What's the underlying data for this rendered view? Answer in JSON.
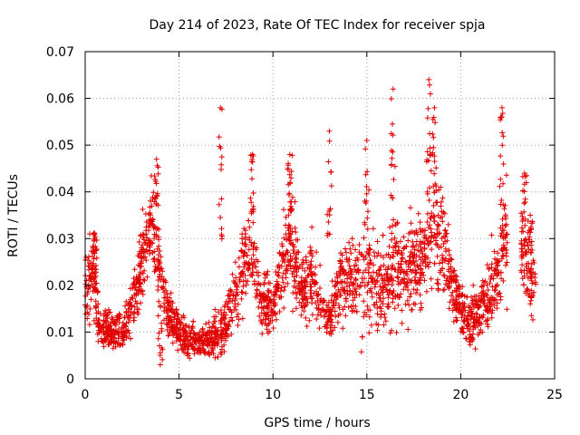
{
  "chart_data": {
    "type": "scatter",
    "title": "Day 214 of 2023, Rate Of TEC Index for receiver spja",
    "xlabel": "GPS time / hours",
    "ylabel": "ROTI / TECUs",
    "xlim": [
      0,
      25
    ],
    "ylim": [
      0,
      0.07
    ],
    "xticks": [
      "0",
      "5",
      "10",
      "15",
      "20",
      "25"
    ],
    "yticks": [
      "0",
      "0.01",
      "0.02",
      "0.03",
      "0.04",
      "0.05",
      "0.06",
      "0.07"
    ],
    "grid": true,
    "marker": "+",
    "color": "#e00000",
    "series": [
      {
        "name": "ROTI",
        "profile": [
          [
            0.0,
            0.018,
            0.006
          ],
          [
            0.3,
            0.022,
            0.006
          ],
          [
            0.5,
            0.024,
            0.006
          ],
          [
            0.6,
            0.015,
            0.004
          ],
          [
            0.8,
            0.011,
            0.003
          ],
          [
            1.5,
            0.01,
            0.003
          ],
          [
            2.0,
            0.01,
            0.003
          ],
          [
            2.5,
            0.016,
            0.004
          ],
          [
            3.0,
            0.024,
            0.006
          ],
          [
            3.3,
            0.03,
            0.006
          ],
          [
            3.6,
            0.036,
            0.007
          ],
          [
            3.9,
            0.025,
            0.006
          ],
          [
            4.3,
            0.015,
            0.004
          ],
          [
            5.0,
            0.01,
            0.003
          ],
          [
            6.0,
            0.008,
            0.002
          ],
          [
            7.0,
            0.009,
            0.003
          ],
          [
            7.5,
            0.012,
            0.004
          ],
          [
            8.0,
            0.018,
            0.005
          ],
          [
            8.5,
            0.025,
            0.006
          ],
          [
            8.9,
            0.03,
            0.007
          ],
          [
            9.3,
            0.018,
            0.005
          ],
          [
            10.0,
            0.014,
            0.004
          ],
          [
            10.5,
            0.025,
            0.007
          ],
          [
            11.0,
            0.03,
            0.008
          ],
          [
            11.5,
            0.018,
            0.005
          ],
          [
            12.0,
            0.022,
            0.006
          ],
          [
            12.5,
            0.018,
            0.005
          ],
          [
            13.0,
            0.012,
            0.003
          ],
          [
            13.5,
            0.02,
            0.006
          ],
          [
            14.0,
            0.02,
            0.006
          ],
          [
            15.0,
            0.022,
            0.008
          ],
          [
            15.5,
            0.02,
            0.007
          ],
          [
            16.0,
            0.021,
            0.007
          ],
          [
            16.5,
            0.023,
            0.008
          ],
          [
            17.0,
            0.022,
            0.007
          ],
          [
            17.5,
            0.023,
            0.007
          ],
          [
            18.0,
            0.028,
            0.008
          ],
          [
            18.5,
            0.032,
            0.009
          ],
          [
            19.0,
            0.03,
            0.008
          ],
          [
            19.5,
            0.02,
            0.005
          ],
          [
            20.0,
            0.015,
            0.004
          ],
          [
            20.5,
            0.012,
            0.004
          ],
          [
            21.0,
            0.015,
            0.004
          ],
          [
            21.5,
            0.018,
            0.005
          ],
          [
            22.0,
            0.022,
            0.007
          ],
          [
            22.3,
            0.03,
            0.008
          ],
          [
            23.0,
            0.033,
            0.006
          ],
          [
            23.7,
            0.022,
            0.006
          ],
          [
            24.0,
            0.02,
            0.005
          ]
        ],
        "gaps": [
          [
            22.5,
            23.2
          ]
        ],
        "peaks": [
          [
            0.5,
            0.031
          ],
          [
            3.8,
            0.047
          ],
          [
            7.2,
            0.058
          ],
          [
            8.9,
            0.048
          ],
          [
            10.9,
            0.048
          ],
          [
            13.0,
            0.053
          ],
          [
            15.0,
            0.051
          ],
          [
            16.4,
            0.062
          ],
          [
            18.3,
            0.064
          ],
          [
            18.6,
            0.058
          ],
          [
            22.2,
            0.058
          ],
          [
            23.4,
            0.044
          ],
          [
            23.7,
            0.035
          ],
          [
            4.0,
            0.003
          ]
        ],
        "count": 2600
      }
    ]
  }
}
